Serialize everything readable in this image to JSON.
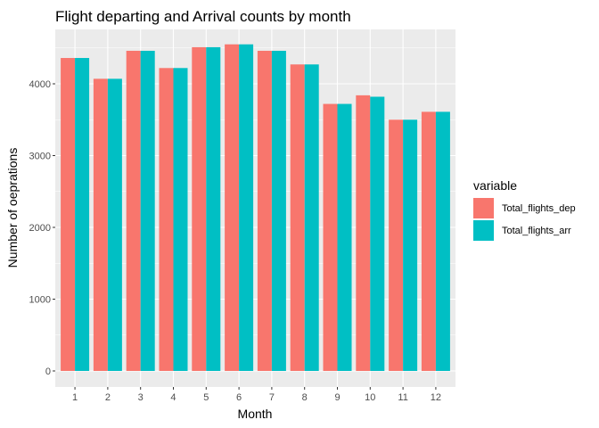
{
  "chart_data": {
    "type": "bar",
    "title": "Flight departing and Arrival counts by month",
    "xlabel": "Month",
    "ylabel": "Number of oeprations",
    "categories": [
      "1",
      "2",
      "3",
      "4",
      "5",
      "6",
      "7",
      "8",
      "9",
      "10",
      "11",
      "12"
    ],
    "series": [
      {
        "name": "Total_flights_dep",
        "color": "#F8766D",
        "values": [
          4360,
          4070,
          4460,
          4220,
          4510,
          4550,
          4460,
          4270,
          3720,
          3840,
          3500,
          3610
        ]
      },
      {
        "name": "Total_flights_arr",
        "color": "#00BFC4",
        "values": [
          4360,
          4070,
          4460,
          4220,
          4510,
          4550,
          4460,
          4270,
          3720,
          3820,
          3500,
          3610
        ]
      }
    ],
    "ylim": [
      0,
      4700
    ],
    "yticks": [
      0,
      1000,
      2000,
      3000,
      4000
    ],
    "grid": true,
    "legend": {
      "title": "variable",
      "position": "right"
    },
    "panel_background": "#EBEBEB",
    "grid_color": "#ffffff"
  }
}
